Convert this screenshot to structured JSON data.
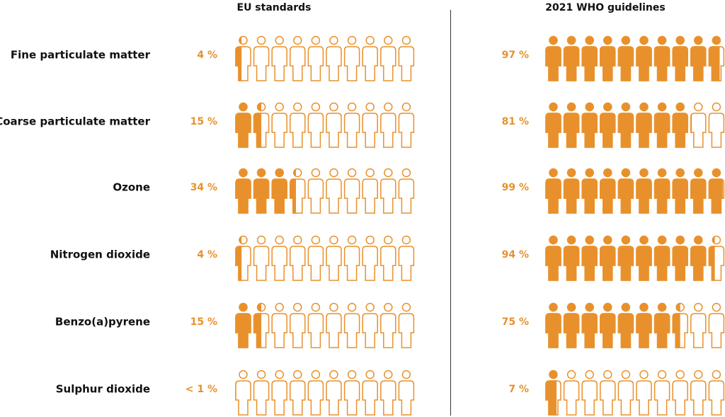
{
  "chart_data": {
    "type": "pictogram",
    "categories": [
      "Fine particulate matter",
      "Coarse particulate matter",
      "Ozone",
      "Nitrogen dioxide",
      "Benzo(a)pyrene",
      "Sulphur dioxide"
    ],
    "series": [
      {
        "name": "EU standards",
        "color": "#e8912c",
        "values": [
          4,
          15,
          34,
          4,
          15,
          0.5
        ],
        "value_labels": [
          "4 %",
          "15 %",
          "34 %",
          "4 %",
          "15 %",
          "< 1 %"
        ]
      },
      {
        "name": "2021 WHO guidelines",
        "color": "#e8912c",
        "values": [
          97,
          81,
          99,
          94,
          75,
          7
        ],
        "value_labels": [
          "97 %",
          "81 %",
          "99 %",
          "94 %",
          "75 %",
          "7 %"
        ]
      }
    ]
  }
}
